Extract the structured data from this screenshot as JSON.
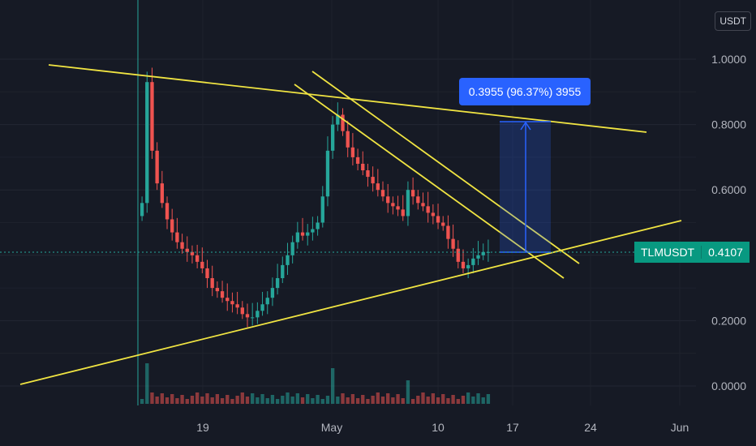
{
  "currency": "USDT",
  "symbol_label": "TLMUSDT",
  "last_price": "0.4107",
  "measurement": "0.3955 (96.37%) 3955",
  "colors": {
    "background": "#161a25",
    "up": "#26a69a",
    "down": "#ef5350",
    "trendline": "#f0e442",
    "measure": "#2962ff",
    "price_line": "#26a69a"
  },
  "chart_data": {
    "type": "candlestick",
    "y_ticks": [
      "1.0000",
      "0.8000",
      "0.6000",
      "0.4000",
      "0.2000",
      "0.0000"
    ],
    "x_ticks": [
      "19",
      "May",
      "10",
      "17",
      "24",
      "Jun"
    ],
    "ylim": [
      -0.05,
      1.07
    ],
    "grid": true,
    "current_price": 0.4107,
    "candles_close_approx": [
      0.56,
      0.93,
      0.72,
      0.62,
      0.56,
      0.51,
      0.47,
      0.44,
      0.42,
      0.41,
      0.4,
      0.38,
      0.36,
      0.33,
      0.3,
      0.29,
      0.27,
      0.26,
      0.25,
      0.24,
      0.22,
      0.21,
      0.21,
      0.23,
      0.25,
      0.27,
      0.3,
      0.33,
      0.37,
      0.4,
      0.44,
      0.47,
      0.46,
      0.47,
      0.48,
      0.5,
      0.58,
      0.72,
      0.8,
      0.83,
      0.78,
      0.73,
      0.7,
      0.68,
      0.66,
      0.64,
      0.62,
      0.6,
      0.58,
      0.56,
      0.55,
      0.54,
      0.52,
      0.6,
      0.58,
      0.56,
      0.55,
      0.53,
      0.52,
      0.5,
      0.49,
      0.45,
      0.42,
      0.38,
      0.36,
      0.37,
      0.39,
      0.4,
      0.41,
      0.41
    ],
    "measure": {
      "from": 0.4107,
      "to": 0.8062,
      "change": 0.3955,
      "percent": 96.37
    }
  }
}
